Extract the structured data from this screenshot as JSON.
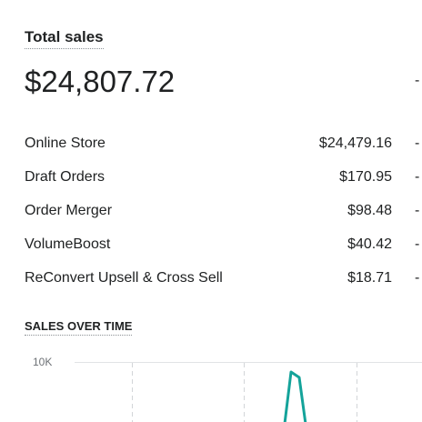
{
  "card": {
    "title": "Total sales",
    "total": "$24,807.72",
    "total_comparison": "-",
    "rows": [
      {
        "label": "Online Store",
        "value": "$24,479.16",
        "comparison": "-"
      },
      {
        "label": "Draft Orders",
        "value": "$170.95",
        "comparison": "-"
      },
      {
        "label": "Order Merger",
        "value": "$98.48",
        "comparison": "-"
      },
      {
        "label": "VolumeBoost",
        "value": "$40.42",
        "comparison": "-"
      },
      {
        "label": "ReConvert Upsell & Cross Sell",
        "value": "$18.71",
        "comparison": "-"
      }
    ],
    "chart_title": "SALES OVER TIME",
    "chart_tick": "10K"
  }
}
